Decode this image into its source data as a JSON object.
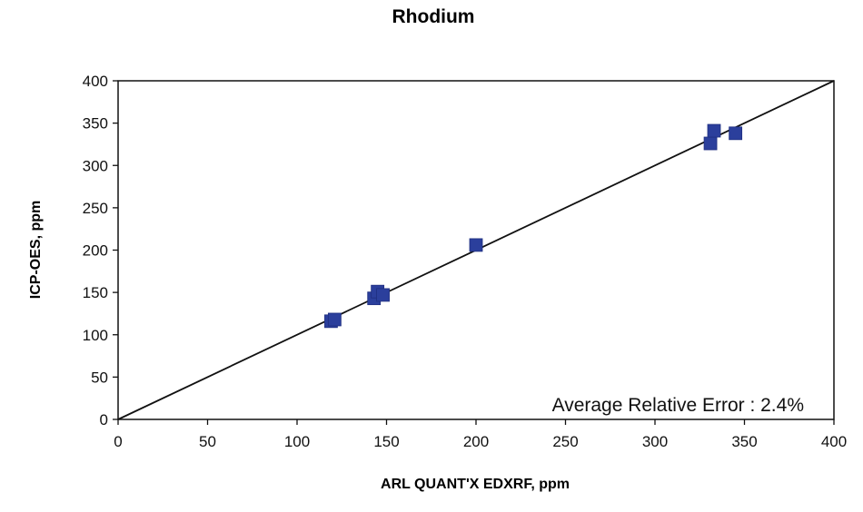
{
  "chart_data": {
    "type": "scatter",
    "title": "Rhodium",
    "xlabel": "ARL QUANT'X EDXRF, ppm",
    "ylabel": "ICP-OES, ppm",
    "xlim": [
      0,
      400
    ],
    "ylim": [
      0,
      400
    ],
    "x_ticks": [
      0,
      50,
      100,
      150,
      200,
      250,
      300,
      350,
      400
    ],
    "y_ticks": [
      0,
      50,
      100,
      150,
      200,
      250,
      300,
      350,
      400
    ],
    "grid": false,
    "legend": "none",
    "series": [
      {
        "marker": "square",
        "color": "#2b3f9c",
        "points": [
          {
            "x": 119,
            "y": 116
          },
          {
            "x": 121,
            "y": 118
          },
          {
            "x": 143,
            "y": 143
          },
          {
            "x": 145,
            "y": 151
          },
          {
            "x": 148,
            "y": 147
          },
          {
            "x": 200,
            "y": 206
          },
          {
            "x": 331,
            "y": 326
          },
          {
            "x": 333,
            "y": 341
          },
          {
            "x": 345,
            "y": 338
          }
        ]
      }
    ],
    "reference_line": {
      "x": [
        0,
        400
      ],
      "y": [
        0,
        400
      ],
      "color": "#111111"
    },
    "annotation": "Average Relative Error : 2.4%"
  }
}
